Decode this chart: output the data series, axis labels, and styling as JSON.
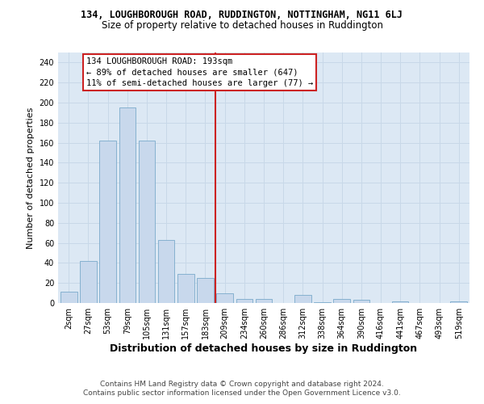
{
  "title_line1": "134, LOUGHBOROUGH ROAD, RUDDINGTON, NOTTINGHAM, NG11 6LJ",
  "title_line2": "Size of property relative to detached houses in Ruddington",
  "xlabel": "Distribution of detached houses by size in Ruddington",
  "ylabel": "Number of detached properties",
  "categories": [
    "2sqm",
    "27sqm",
    "53sqm",
    "79sqm",
    "105sqm",
    "131sqm",
    "157sqm",
    "183sqm",
    "209sqm",
    "234sqm",
    "260sqm",
    "286sqm",
    "312sqm",
    "338sqm",
    "364sqm",
    "390sqm",
    "416sqm",
    "441sqm",
    "467sqm",
    "493sqm",
    "519sqm"
  ],
  "values": [
    11,
    42,
    162,
    195,
    162,
    63,
    29,
    25,
    10,
    4,
    4,
    0,
    8,
    1,
    4,
    3,
    0,
    2,
    0,
    0,
    2
  ],
  "bar_color": "#c8d8ec",
  "bar_edge_color": "#7aaaca",
  "vline_color": "#cc2222",
  "vline_x": 7.5,
  "annotation_text_line1": "134 LOUGHBOROUGH ROAD: 193sqm",
  "annotation_text_line2": "← 89% of detached houses are smaller (647)",
  "annotation_text_line3": "11% of semi-detached houses are larger (77) →",
  "annotation_box_facecolor": "#ffffff",
  "annotation_box_edgecolor": "#cc2222",
  "ylim": [
    0,
    250
  ],
  "yticks": [
    0,
    20,
    40,
    60,
    80,
    100,
    120,
    140,
    160,
    180,
    200,
    220,
    240
  ],
  "grid_color": "#c8d8e8",
  "plot_bg_color": "#dce8f4",
  "title1_fontsize": 8.5,
  "title2_fontsize": 8.5,
  "ylabel_fontsize": 8,
  "xlabel_fontsize": 9,
  "tick_fontsize": 7,
  "footer_line1": "Contains HM Land Registry data © Crown copyright and database right 2024.",
  "footer_line2": "Contains public sector information licensed under the Open Government Licence v3.0."
}
